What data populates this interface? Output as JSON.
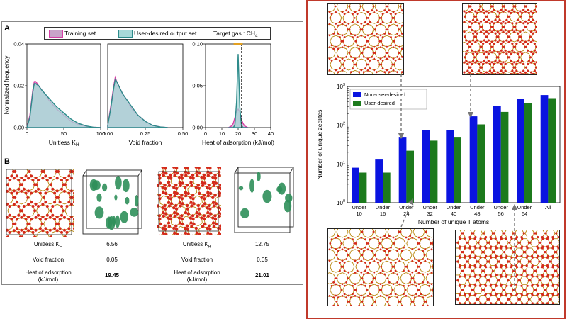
{
  "panel_a": {
    "letter": "A",
    "legend": {
      "training": "Training set",
      "user": "User-desired output set",
      "target": "Target gas : CH",
      "target_sub": "4"
    },
    "ylabel": "Normalized frequency",
    "xlabels": [
      "Unitless K",
      "Void fraction",
      "Heat of adsorption (kJ/mol)"
    ],
    "xlabel_sub": "H"
  },
  "panel_b": {
    "letter": "B",
    "structure1": {
      "labels": [
        "Unitless K",
        "Void fraction",
        "Heat of adsorption\n(kJ/mol)"
      ],
      "values": [
        "6.56",
        "0.05",
        "19.45"
      ]
    },
    "structure2": {
      "labels": [
        "Unitless K",
        "Void fraction",
        "Heat of adsorption\n(kJ/mol)"
      ],
      "values": [
        "12.75",
        "0.05",
        "21.01"
      ]
    }
  },
  "colors": {
    "training": "#d63fa6",
    "training_fill": "#c9a3c9",
    "user": "#2e8b8b",
    "user_fill": "#a7d8d8",
    "bar_blue": "#0a14e0",
    "bar_green": "#1c7a1c",
    "frame_red": "#c0392b",
    "oxygen": "#d42a1a",
    "silicon": "#e8c030",
    "isosurface": "#2f8f5a"
  },
  "chart_data": [
    {
      "type": "area",
      "title": "",
      "xlabel": "Unitless K_H",
      "ylabel": "Normalized frequency",
      "xlim": [
        0,
        100
      ],
      "ylim": [
        0,
        0.04
      ],
      "xticks": [
        0,
        50,
        100
      ],
      "yticks": [
        0.0,
        0.02,
        0.04
      ],
      "x": [
        0,
        4,
        8,
        10,
        12,
        16,
        20,
        25,
        30,
        40,
        50,
        60,
        70,
        80,
        90,
        100
      ],
      "series": [
        {
          "name": "Training set",
          "values": [
            0,
            0.006,
            0.018,
            0.022,
            0.022,
            0.02,
            0.018,
            0.016,
            0.013,
            0.009,
            0.006,
            0.003,
            0.0015,
            0.0006,
            0.0002,
            0
          ]
        },
        {
          "name": "User-desired output set",
          "values": [
            0,
            0.005,
            0.017,
            0.021,
            0.021,
            0.02,
            0.018,
            0.016,
            0.014,
            0.01,
            0.007,
            0.004,
            0.002,
            0.0008,
            0.0002,
            0
          ]
        }
      ]
    },
    {
      "type": "area",
      "title": "",
      "xlabel": "Void fraction",
      "ylabel": "",
      "xlim": [
        0,
        0.5
      ],
      "ylim": [
        0,
        0.04
      ],
      "xticks": [
        0.0,
        0.25,
        0.5
      ],
      "x": [
        0,
        0.02,
        0.04,
        0.05,
        0.06,
        0.08,
        0.1,
        0.13,
        0.16,
        0.2,
        0.25,
        0.3,
        0.35,
        0.4
      ],
      "series": [
        {
          "name": "Training set",
          "values": [
            0.001,
            0.01,
            0.02,
            0.024,
            0.022,
            0.019,
            0.016,
            0.013,
            0.009,
            0.006,
            0.003,
            0.001,
            0.0003,
            0
          ]
        },
        {
          "name": "User-desired output set",
          "values": [
            0.001,
            0.009,
            0.019,
            0.023,
            0.022,
            0.019,
            0.016,
            0.013,
            0.01,
            0.006,
            0.003,
            0.001,
            0.0003,
            0
          ]
        }
      ]
    },
    {
      "type": "area",
      "title": "",
      "xlabel": "Heat of adsorption (kJ/mol)",
      "ylabel": "",
      "xlim": [
        0,
        40
      ],
      "ylim": [
        0,
        0.1
      ],
      "xticks": [
        0,
        10,
        20,
        30,
        40
      ],
      "yticks": [
        0.0,
        0.05,
        0.1
      ],
      "x": [
        14,
        16,
        17,
        18,
        19,
        20,
        21,
        22,
        23,
        24,
        26
      ],
      "series": [
        {
          "name": "Training set",
          "values": [
            0,
            0.002,
            0.005,
            0.012,
            0.02,
            0.022,
            0.019,
            0.01,
            0.005,
            0.002,
            0
          ]
        },
        {
          "name": "User-desired output set",
          "values": [
            0,
            0,
            0,
            0.003,
            0.03,
            0.088,
            0.025,
            0.003,
            0,
            0,
            0
          ]
        }
      ]
    },
    {
      "type": "bar",
      "title": "",
      "xlabel": "Number of unique T atoms",
      "ylabel": "Number of unique zeolites",
      "yscale": "log",
      "ylim": [
        1,
        1000
      ],
      "categories": [
        "Under\n10",
        "Under\n16",
        "Under\n24",
        "Under\n32",
        "Under\n40",
        "Under\n48",
        "Under\n56",
        "Under\n64",
        "All"
      ],
      "series": [
        {
          "name": "Non-user-desired",
          "values": [
            8,
            13,
            50,
            75,
            75,
            170,
            320,
            480,
            600
          ]
        },
        {
          "name": "User-desired",
          "values": [
            6,
            6,
            22,
            40,
            50,
            105,
            220,
            370,
            500
          ]
        }
      ],
      "legend": "top-left"
    }
  ]
}
